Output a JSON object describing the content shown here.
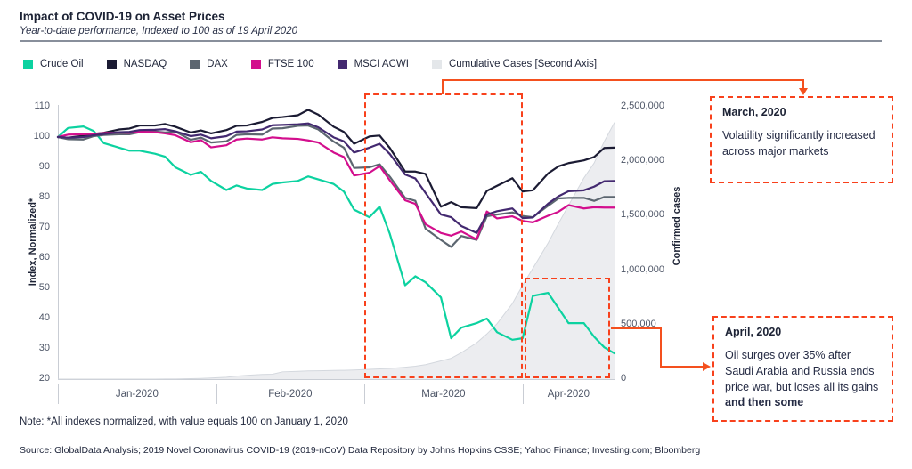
{
  "header": {
    "title": "Impact of COVID-19 on Asset Prices",
    "subtitle": "Year-to-date performance, Indexed to 100 as of 19 April 2020"
  },
  "legend": [
    {
      "label": "Crude Oil",
      "color": "#0cd2a0"
    },
    {
      "label": "NASDAQ",
      "color": "#1b1b33"
    },
    {
      "label": "DAX",
      "color": "#5c6670"
    },
    {
      "label": "FTSE 100",
      "color": "#d30e8d"
    },
    {
      "label": "MSCI ACWI",
      "color": "#432970"
    },
    {
      "label": "Cumulative Cases [Second Axis]",
      "color": "#e4e7ea"
    }
  ],
  "axes": {
    "left": {
      "title": "Index, Normalized*",
      "ticks": [
        "110",
        "100",
        "90",
        "80",
        "70",
        "60",
        "50",
        "40",
        "30",
        "20"
      ]
    },
    "right": {
      "title": "Confirmed cases",
      "ticks": [
        "2,500,000",
        "2,000,000",
        "1,500,000",
        "1,000,000",
        "500,000",
        "0"
      ]
    },
    "x": {
      "labels": [
        "Jan-2020",
        "Feb-2020",
        "Mar-2020",
        "Apr-2020"
      ]
    }
  },
  "annotations": {
    "march": {
      "title": "March, 2020",
      "body": "Volatility significantly increased across major markets"
    },
    "april": {
      "title": "April, 2020",
      "body": "Oil surges over 35%  after Saudi Arabia and Russia ends price war, but loses all its gains ",
      "body_bold": "and then some"
    }
  },
  "notes": {
    "note": "Note: *All indexes normalized, with value equals 100 on January 1, 2020",
    "source": "Source: GlobalData Analysis; 2019 Novel Coronavirus COVID-19 (2019-nCoV) Data Repository by Johns Hopkins CSSE; Yahoo Finance; Investing.com; Bloomberg"
  },
  "chart_data": {
    "type": "line",
    "title": "Impact of COVID-19 on Asset Prices",
    "x_unit": "days since 2020-01-01",
    "x_range": [
      0,
      109
    ],
    "left_axis": {
      "label": "Index, Normalized*",
      "range": [
        20,
        110
      ]
    },
    "right_axis": {
      "label": "Confirmed cases",
      "range": [
        0,
        2500000
      ]
    },
    "x_tick_labels": [
      "Jan-2020",
      "Feb-2020",
      "Mar-2020",
      "Apr-2020"
    ],
    "month_boundary_days": [
      0,
      31,
      60,
      91,
      109
    ],
    "grid": false,
    "legend_position": "top",
    "x": [
      0,
      2,
      5,
      7,
      9,
      12,
      14,
      16,
      19,
      21,
      23,
      26,
      28,
      30,
      33,
      35,
      37,
      40,
      42,
      44,
      47,
      49,
      51,
      54,
      56,
      58,
      61,
      63,
      65,
      68,
      70,
      72,
      75,
      77,
      79,
      82,
      84,
      86,
      89,
      91,
      93,
      96,
      98,
      100,
      103,
      105,
      107,
      109
    ],
    "series": [
      {
        "name": "Crude Oil",
        "axis": "left",
        "color": "#0cd2a0",
        "values": [
          100,
          103,
          103.5,
          102,
          98,
          96.5,
          95.5,
          95.5,
          94.5,
          93.5,
          90,
          87.5,
          88.5,
          85.5,
          82.5,
          84,
          83,
          82.5,
          84.5,
          85,
          85.5,
          87,
          86,
          84.5,
          82,
          76,
          73.5,
          77,
          68,
          51,
          54,
          52,
          47,
          33.5,
          37,
          38.5,
          40,
          35.5,
          33,
          33.5,
          47.5,
          48.5,
          43.5,
          38.5,
          38.5,
          34,
          30.5,
          28.5
        ]
      },
      {
        "name": "NASDAQ",
        "axis": "left",
        "color": "#1b1b33",
        "values": [
          100,
          99.8,
          100.4,
          101,
          101.4,
          102.5,
          102.8,
          103.8,
          103.8,
          104.3,
          103.4,
          101.5,
          102.2,
          101.2,
          102.3,
          103.7,
          103.8,
          105,
          106.3,
          106.6,
          107.2,
          109,
          107.4,
          103.4,
          101.7,
          97.8,
          100.2,
          100.5,
          96.4,
          88.6,
          88.6,
          87.8,
          77,
          78.5,
          76.8,
          76.5,
          82.2,
          83.9,
          86.4,
          82,
          82.4,
          88,
          90.3,
          91.4,
          92.3,
          93.4,
          96.4,
          96.5
        ]
      },
      {
        "name": "DAX",
        "axis": "left",
        "color": "#5c6670",
        "values": [
          100,
          99.3,
          99.2,
          100.3,
          100.7,
          100.9,
          100.9,
          101.6,
          101.8,
          101.5,
          101.8,
          99.1,
          99.8,
          98.2,
          98.6,
          100.7,
          100.9,
          100.8,
          102.8,
          102.9,
          103.7,
          103.8,
          102.5,
          98.5,
          96.5,
          89.8,
          90,
          91,
          86.9,
          79.9,
          78.9,
          69.7,
          66,
          63.7,
          67.3,
          66,
          73.8,
          74.4,
          75.1,
          73.9,
          73.5,
          77.3,
          79.7,
          79.9,
          79.9,
          78.9,
          80.2,
          80.2
        ]
      },
      {
        "name": "FTSE 100",
        "axis": "left",
        "color": "#d30e8d",
        "values": [
          100,
          100.8,
          100.9,
          101.1,
          101.3,
          101.5,
          101.4,
          101.8,
          101.6,
          101.2,
          100.6,
          98.3,
          99,
          96.6,
          97.3,
          99.2,
          99.5,
          99.2,
          99.9,
          99.6,
          99.4,
          98.9,
          98.2,
          94.9,
          93.4,
          87.3,
          88.2,
          90.4,
          85.7,
          79.1,
          77.9,
          71.2,
          68.3,
          67.4,
          68.8,
          66.2,
          75.4,
          73.1,
          73.8,
          72.3,
          71.8,
          74,
          75.3,
          77.5,
          76.4,
          76.8,
          76.7,
          76.7
        ]
      },
      {
        "name": "MSCI ACWI",
        "axis": "left",
        "color": "#432970",
        "values": [
          100,
          99.8,
          100,
          100.6,
          101,
          101.6,
          101.7,
          102.3,
          102.4,
          102.6,
          101.9,
          100.3,
          100.8,
          99.6,
          100.3,
          101.8,
          101.9,
          102.5,
          103.9,
          104,
          104.2,
          104.5,
          103.2,
          99.9,
          98.6,
          94.9,
          96.5,
          97.8,
          94.4,
          87.6,
          86.3,
          81.5,
          74.4,
          73.5,
          70.6,
          68.3,
          74.4,
          75.5,
          76.4,
          73.2,
          73.4,
          78,
          80.4,
          82.1,
          82.4,
          83.6,
          85.4,
          85.5
        ]
      },
      {
        "name": "Cumulative Cases [Second Axis]",
        "axis": "right",
        "type": "area",
        "color": "#ecedf0",
        "edge_color": "#d4d8de",
        "values": [
          0,
          0,
          0,
          0,
          0,
          0,
          0,
          0,
          300,
          600,
          1400,
          4500,
          6200,
          9900,
          17400,
          27600,
          34900,
          42700,
          45200,
          66900,
          71400,
          75600,
          76800,
          79600,
          81100,
          83900,
          90300,
          93500,
          98400,
          109600,
          118600,
          132800,
          167500,
          191100,
          242500,
          332900,
          414200,
          509200,
          693200,
          861100,
          1016400,
          1250000,
          1426100,
          1595400,
          1846700,
          1982900,
          2182800,
          2356500
        ]
      }
    ],
    "highlight_boxes": [
      {
        "name": "march-volatility-region",
        "x1_day": 60,
        "x2_day": 91,
        "v1": 20.3,
        "v2": 114.5
      },
      {
        "name": "april-oil-region",
        "x1_day": 91.3,
        "x2_day": 108.1,
        "v1": 20.3,
        "v2": 53.5
      }
    ]
  }
}
